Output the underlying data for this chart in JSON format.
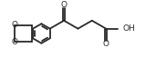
{
  "bg_color": "#ffffff",
  "line_color": "#2a2a2a",
  "line_width": 1.3,
  "font_size": 6.5,
  "fig_width": 1.71,
  "fig_height": 0.74,
  "dpi": 100,
  "xlim": [
    0,
    171
  ],
  "ylim": [
    0,
    74
  ]
}
